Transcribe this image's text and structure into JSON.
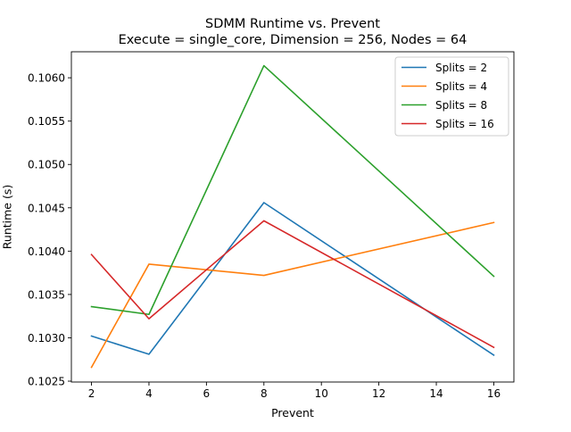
{
  "chart_data": {
    "type": "line",
    "title": "SDMM Runtime vs. Prevent",
    "subtitle": "Execute = single_core, Dimension = 256, Nodes = 64",
    "xlabel": "Prevent",
    "ylabel": "Runtime (s)",
    "x": [
      2,
      4,
      8,
      16
    ],
    "xlim": [
      1.3,
      16.7
    ],
    "ylim": [
      0.10249,
      0.1063
    ],
    "x_ticks": [
      2,
      4,
      6,
      8,
      10,
      12,
      14,
      16
    ],
    "x_tick_labels": [
      "2",
      "4",
      "6",
      "8",
      "10",
      "12",
      "14",
      "16"
    ],
    "y_ticks": [
      0.1025,
      0.103,
      0.1035,
      0.104,
      0.1045,
      0.105,
      0.1055,
      0.106
    ],
    "y_tick_labels": [
      "0.1025",
      "0.1030",
      "0.1035",
      "0.1040",
      "0.1045",
      "0.1050",
      "0.1055",
      "0.1060"
    ],
    "grid": false,
    "legend_position": "top-right",
    "series": [
      {
        "name": "Splits = 2",
        "color": "#1f77b4",
        "values": [
          0.10302,
          0.10281,
          0.10456,
          0.1028
        ]
      },
      {
        "name": "Splits = 4",
        "color": "#ff7f0e",
        "values": [
          0.10266,
          0.10385,
          0.10372,
          0.10433
        ]
      },
      {
        "name": "Splits = 8",
        "color": "#2ca02c",
        "values": [
          0.10336,
          0.10327,
          0.10614,
          0.10371
        ]
      },
      {
        "name": "Splits = 16",
        "color": "#d62728",
        "values": [
          0.10396,
          0.10322,
          0.10435,
          0.10289
        ]
      }
    ]
  }
}
